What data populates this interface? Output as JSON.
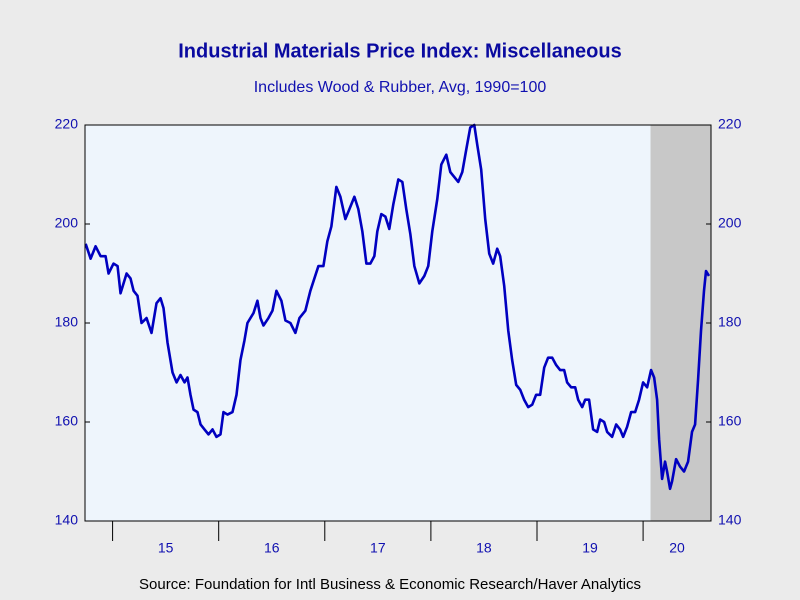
{
  "chart_data": {
    "type": "line",
    "title": "Industrial Materials Price Index: Miscellaneous",
    "subtitle": "Includes Wood & Rubber, Avg, 1990=100",
    "source": "Source:  Foundation for Intl Business & Economic Research/Haver Analytics",
    "shaded": [
      2020.07,
      2020.64
    ],
    "xlim": [
      2014.74,
      2020.64
    ],
    "xticks": [
      2015,
      2016,
      2017,
      2018,
      2019,
      2020
    ],
    "xtick_labels": [
      {
        "value": 2015.5,
        "label": "15"
      },
      {
        "value": 2016.5,
        "label": "16"
      },
      {
        "value": 2017.5,
        "label": "17"
      },
      {
        "value": 2018.5,
        "label": "18"
      },
      {
        "value": 2019.5,
        "label": "19"
      },
      {
        "value": 2020.32,
        "label": "20"
      }
    ],
    "ylim": [
      140,
      220
    ],
    "yticks": [
      140,
      160,
      180,
      200,
      220
    ],
    "y2lim": [
      140,
      220
    ],
    "y2ticks": [
      140,
      160,
      180,
      200,
      220
    ],
    "x": [
      2014.746,
      2014.793,
      2014.84,
      2014.887,
      2014.934,
      2014.962,
      2015.009,
      2015.047,
      2015.075,
      2015.132,
      2015.169,
      2015.198,
      2015.235,
      2015.273,
      2015.32,
      2015.367,
      2015.414,
      2015.452,
      2015.48,
      2015.518,
      2015.565,
      2015.603,
      2015.64,
      2015.678,
      2015.706,
      2015.734,
      2015.763,
      2015.8,
      2015.829,
      2015.866,
      2015.904,
      2015.942,
      2015.979,
      2016.017,
      2016.045,
      2016.083,
      2016.13,
      2016.168,
      2016.205,
      2016.243,
      2016.271,
      2016.328,
      2016.365,
      2016.394,
      2016.422,
      2016.469,
      2016.507,
      2016.544,
      2016.591,
      2016.629,
      2016.676,
      2016.723,
      2016.761,
      2016.817,
      2016.864,
      2016.902,
      2016.94,
      2016.987,
      2017.024,
      2017.062,
      2017.109,
      2017.147,
      2017.194,
      2017.232,
      2017.279,
      2017.316,
      2017.354,
      2017.392,
      2017.429,
      2017.467,
      2017.495,
      2017.533,
      2017.571,
      2017.608,
      2017.646,
      2017.693,
      2017.731,
      2017.768,
      2017.806,
      2017.844,
      2017.891,
      2017.938,
      2017.975,
      2018.013,
      2018.06,
      2018.098,
      2018.145,
      2018.183,
      2018.22,
      2018.258,
      2018.296,
      2018.333,
      2018.371,
      2018.409,
      2018.437,
      2018.474,
      2018.512,
      2018.55,
      2018.587,
      2018.625,
      2018.653,
      2018.691,
      2018.729,
      2018.766,
      2018.804,
      2018.842,
      2018.879,
      2018.917,
      2018.955,
      2018.992,
      2019.03,
      2019.068,
      2019.105,
      2019.143,
      2019.181,
      2019.218,
      2019.256,
      2019.284,
      2019.322,
      2019.36,
      2019.388,
      2019.426,
      2019.454,
      2019.491,
      2019.529,
      2019.567,
      2019.595,
      2019.633,
      2019.661,
      2019.708,
      2019.746,
      2019.783,
      2019.812,
      2019.849,
      2019.887,
      2019.925,
      2019.962,
      2020.0,
      2020.038,
      2020.075,
      2020.104,
      2020.132,
      2020.151,
      2020.179,
      2020.207,
      2020.226,
      2020.254,
      2020.273,
      2020.311,
      2020.348,
      2020.386,
      2020.424,
      2020.461,
      2020.49,
      2020.518,
      2020.546,
      2020.574,
      2020.593,
      2020.621
    ],
    "series": [
      {
        "color": "#0000c0",
        "values": [
          196,
          193,
          195.5,
          193.5,
          193.5,
          190,
          192,
          191.5,
          186,
          190,
          189,
          186.5,
          185.5,
          180,
          181,
          178,
          184,
          185,
          183,
          176,
          170,
          168,
          169.5,
          168,
          169,
          165.5,
          162.5,
          162,
          159.5,
          158.5,
          157.5,
          158.5,
          157,
          157.5,
          162,
          161.5,
          162,
          165.5,
          172.5,
          176.5,
          180,
          182,
          184.5,
          181,
          179.5,
          181,
          182.5,
          186.5,
          184.5,
          180.5,
          180,
          178,
          181,
          182.5,
          186.5,
          189,
          191.5,
          191.5,
          196.5,
          199.5,
          207.5,
          205.5,
          201,
          203,
          205.5,
          203,
          198.5,
          192,
          192,
          193.5,
          198.5,
          202,
          201.5,
          199,
          204,
          209,
          208.5,
          203,
          198,
          191.5,
          188,
          189.5,
          191.5,
          198.5,
          205,
          212,
          214,
          210.5,
          209.5,
          208.5,
          210.5,
          215,
          219.5,
          220,
          216,
          211,
          201,
          194,
          192,
          195,
          193.5,
          187.5,
          178.5,
          172.5,
          167.5,
          166.5,
          164.5,
          163,
          163.5,
          165.5,
          165.5,
          171,
          173,
          173,
          171.5,
          170.5,
          170.5,
          168,
          167,
          167,
          164.5,
          163,
          164.5,
          164.5,
          158.5,
          158,
          160.5,
          160,
          158,
          157,
          159.5,
          158.5,
          157,
          159,
          162,
          162,
          164.5,
          168,
          167,
          170.5,
          169,
          164.5,
          156.5,
          148.5,
          152,
          150,
          146.5,
          148,
          152.5,
          151,
          150,
          152,
          158,
          159.5,
          168.5,
          178.5,
          186.5,
          190.5,
          189.5
        ]
      }
    ]
  }
}
